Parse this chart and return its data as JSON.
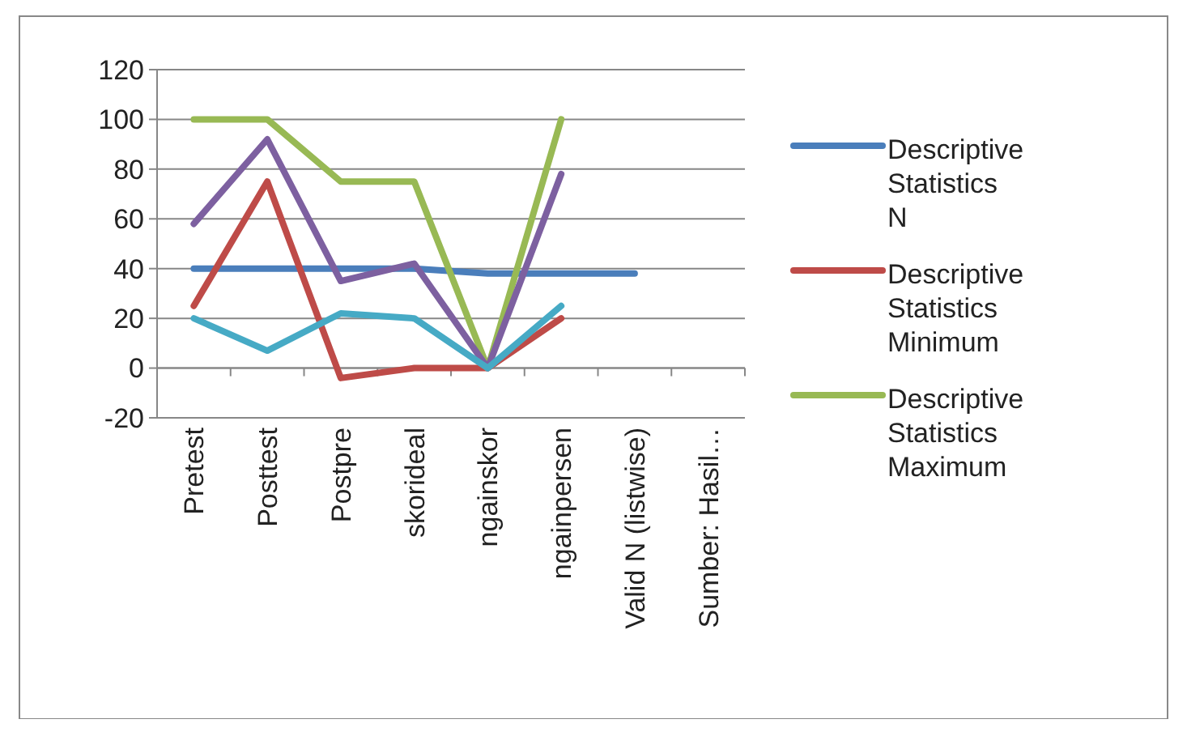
{
  "chart_data": {
    "type": "line",
    "categories": [
      "Pretest",
      "Posttest",
      "Postpre",
      "skorideal",
      "ngainskor",
      "ngainpersen",
      "Valid N (listwise)",
      "Sumber: Hasil…"
    ],
    "series": [
      {
        "name": "Descriptive Statistics N",
        "color": "#4a7ebb",
        "values": [
          40,
          40,
          40,
          40,
          38,
          38,
          38,
          null
        ]
      },
      {
        "name": "Descriptive Statistics Minimum",
        "color": "#be4b48",
        "values": [
          25,
          75,
          -4,
          0,
          0,
          20,
          null,
          null
        ]
      },
      {
        "name": "Descriptive Statistics Maximum",
        "color": "#98b954",
        "values": [
          100,
          100,
          75,
          75,
          0,
          100,
          null,
          null
        ]
      },
      {
        "color": "#7d60a0",
        "values": [
          58,
          92,
          35,
          42,
          0,
          78,
          null,
          null
        ]
      },
      {
        "color": "#46aac5",
        "values": [
          20,
          7,
          22,
          20,
          0,
          25,
          null,
          null
        ]
      }
    ],
    "ylim": [
      -20,
      120
    ],
    "yticks": [
      -20,
      0,
      20,
      40,
      60,
      80,
      100,
      120
    ],
    "grid": "y",
    "legend": "right",
    "marker": "none",
    "line_style": "solid"
  }
}
